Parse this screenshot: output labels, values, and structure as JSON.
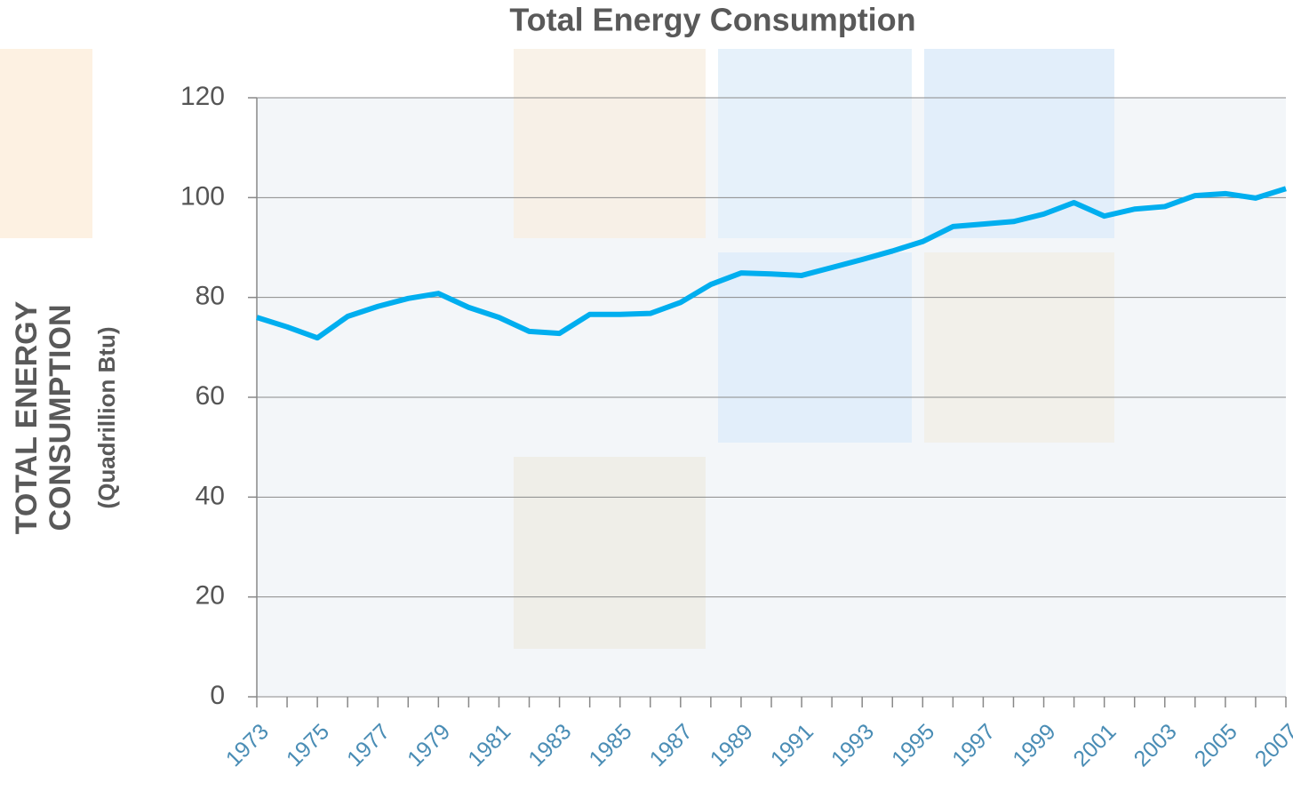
{
  "chart_data": {
    "type": "line",
    "title": "Total Energy Consumption",
    "y_label": [
      "TOTAL ENERGY",
      "CONSUMPTION"
    ],
    "y_label_unit": "(Quadrillion Btu)",
    "categories": [
      "1973",
      null,
      "1975",
      null,
      "1977",
      null,
      "1979",
      null,
      "1981",
      null,
      "1983",
      null,
      "1985",
      null,
      "1987",
      null,
      "1989",
      null,
      "1991",
      null,
      "1993",
      null,
      "1995",
      null,
      "1997",
      null,
      "1999",
      null,
      "2001",
      null,
      "2003",
      null,
      "2005",
      null,
      "2007"
    ],
    "series": [
      {
        "name": "Total Energy Consumption",
        "color": "#00aeef",
        "values": [
          76.0,
          74.1,
          71.9,
          76.2,
          78.2,
          79.8,
          80.8,
          78.0,
          76.0,
          73.2,
          72.8,
          76.6,
          76.6,
          76.8,
          79.0,
          82.6,
          84.9,
          84.7,
          84.4,
          86.0,
          87.6,
          89.3,
          91.2,
          94.2,
          94.7,
          95.2,
          96.7,
          99.0,
          96.3,
          97.7,
          98.2,
          100.4,
          100.8,
          99.9,
          101.8
        ]
      }
    ],
    "ylim": [
      0,
      120
    ],
    "yticks": [
      0,
      20,
      40,
      60,
      80,
      100,
      120
    ],
    "grid": true
  }
}
